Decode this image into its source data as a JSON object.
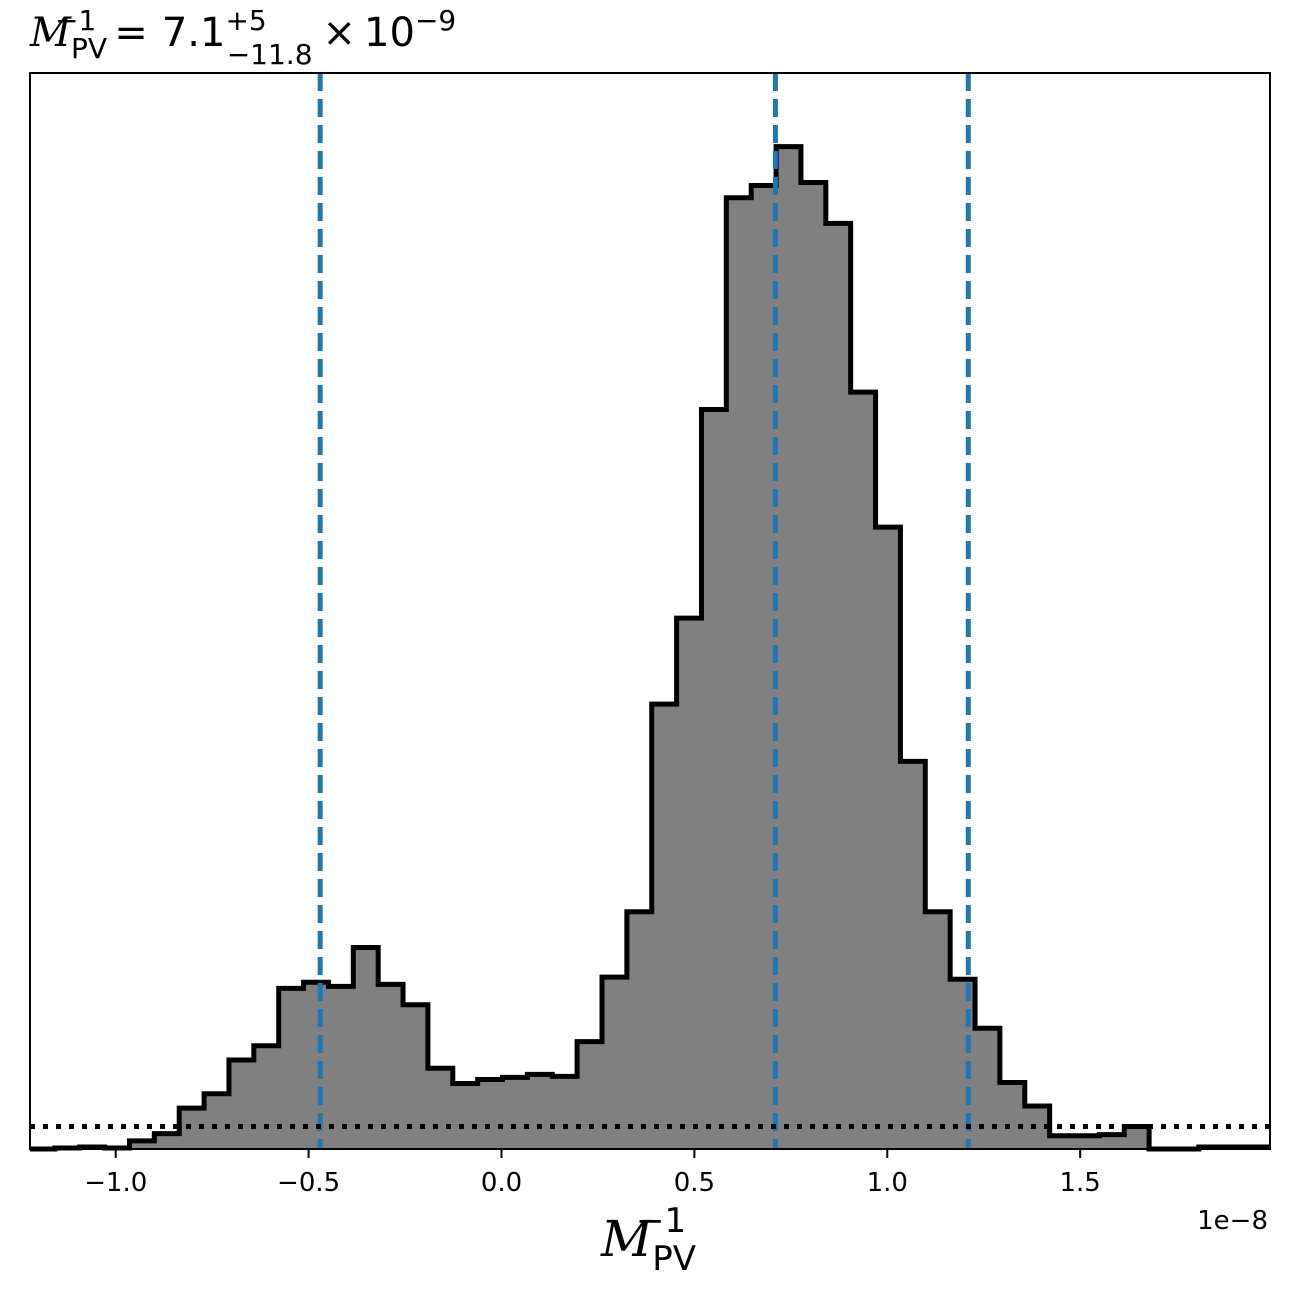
{
  "chart_data": {
    "type": "histogram",
    "title": {
      "var": "M",
      "var_sub": "PV",
      "var_sup": "−1",
      "equals": "=",
      "value": "7.1",
      "upper_err": "+5",
      "lower_err": "−11.8",
      "times": "×",
      "base": "10",
      "exponent": "−9"
    },
    "xlabel": {
      "var": "M",
      "sub": "PV",
      "sup": "−1"
    },
    "ylabel": "",
    "x_offset_label": "1e−8",
    "x_scale": 1e-08,
    "xlim": [
      -1.2222,
      1.9921
    ],
    "ylim": [
      0,
      1052
    ],
    "x_ticks": [
      -1.0,
      -0.5,
      0.0,
      0.5,
      1.0,
      1.5
    ],
    "x_tick_labels": [
      "−1.0",
      "−0.5",
      "0.0",
      "0.5",
      "1.0",
      "1.5"
    ],
    "y_ticks_visible": false,
    "bin_edges": [
      -1.2222,
      -1.1577,
      -1.0933,
      -1.0288,
      -0.9643,
      -0.8999,
      -0.8354,
      -0.7709,
      -0.7065,
      -0.642,
      -0.5775,
      -0.5131,
      -0.4486,
      -0.3841,
      -0.3197,
      -0.2552,
      -0.1908,
      -0.1263,
      -0.0618,
      0.0026,
      0.0671,
      0.1316,
      0.196,
      0.2605,
      0.325,
      0.3894,
      0.4539,
      0.5184,
      0.5828,
      0.6473,
      0.7118,
      0.7762,
      0.8407,
      0.9051,
      0.9696,
      1.0341,
      1.0985,
      1.163,
      1.2275,
      1.2919,
      1.3564,
      1.4209,
      1.4853,
      1.5498,
      1.6143,
      1.6787,
      1.7432,
      1.8076,
      1.8721,
      1.9366,
      1.9921
    ],
    "counts": [
      0,
      1,
      2,
      1,
      8,
      15,
      40,
      54,
      87,
      101,
      157,
      163,
      159,
      197,
      161,
      141,
      79,
      64,
      68,
      70,
      73,
      71,
      105,
      168,
      232,
      435,
      519,
      723,
      930,
      942,
      980,
      945,
      905,
      740,
      608,
      379,
      232,
      166,
      118,
      65,
      42,
      13,
      13,
      14,
      22,
      0,
      0,
      2,
      2,
      2
    ],
    "fill_color": "#808080",
    "edge_color": "#000000",
    "vlines": [
      {
        "x": -0.47,
        "style": "dashed",
        "color": "#1f77b4"
      },
      {
        "x": 0.71,
        "style": "dashed",
        "color": "#1f77b4"
      },
      {
        "x": 1.21,
        "style": "dashed",
        "color": "#1f77b4"
      }
    ],
    "hlines": [
      {
        "y": 22,
        "style": "dotted",
        "color": "#000000"
      }
    ],
    "grid": false,
    "legend": "none"
  }
}
